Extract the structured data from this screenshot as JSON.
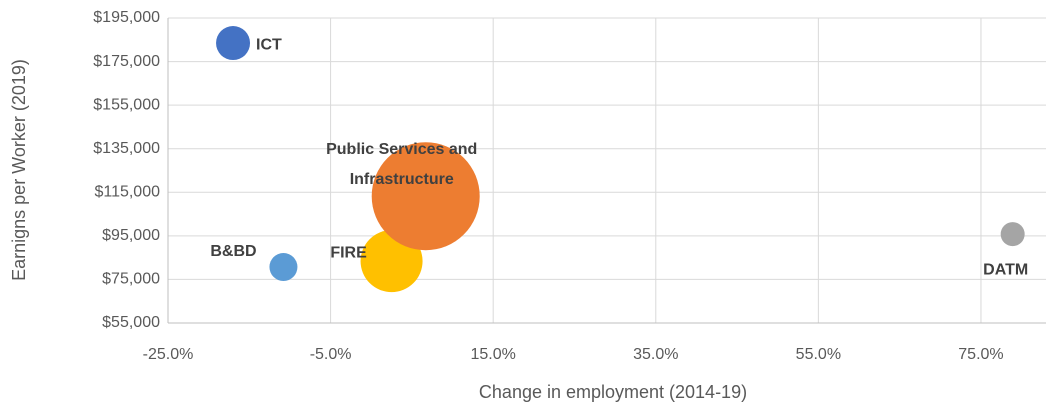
{
  "chart_data": {
    "type": "scatter",
    "x_label": "Change in employment (2014-19)",
    "y_label": "Earnigns per Worker (2019)",
    "xlim": [
      -25,
      83
    ],
    "ylim": [
      55000,
      195000
    ],
    "xticks": [
      {
        "value": -25,
        "label": "-25.0%"
      },
      {
        "value": -5,
        "label": "-5.0%"
      },
      {
        "value": 15,
        "label": "15.0%"
      },
      {
        "value": 35,
        "label": "35.0%"
      },
      {
        "value": 55,
        "label": "55.0%"
      },
      {
        "value": 75,
        "label": "75.0%"
      }
    ],
    "yticks": [
      {
        "value": 55000,
        "label": "$55,000"
      },
      {
        "value": 75000,
        "label": "$75,000"
      },
      {
        "value": 95000,
        "label": "$95,000"
      },
      {
        "value": 115000,
        "label": "$115,000"
      },
      {
        "value": 135000,
        "label": "$135,000"
      },
      {
        "value": 155000,
        "label": "$155,000"
      },
      {
        "value": 175000,
        "label": "$175,000"
      },
      {
        "value": 195000,
        "label": "$195,000"
      }
    ],
    "grid": true,
    "series": [
      {
        "name": "ICT",
        "color": "#4472c4",
        "x": [
          -17.0
        ],
        "values": [
          183500
        ],
        "sizes": [
          289
        ]
      },
      {
        "name": "B&BD",
        "color": "#5b9bd5",
        "x": [
          -10.8
        ],
        "values": [
          80700
        ],
        "sizes": [
          196
        ]
      },
      {
        "name": "FIRE",
        "color": "#ffc000",
        "x": [
          2.5
        ],
        "values": [
          83400
        ],
        "sizes": [
          961
        ]
      },
      {
        "name": "Public Services and Infrastructure",
        "color": "#ed7d31",
        "x": [
          6.7
        ],
        "values": [
          113200
        ],
        "sizes": [
          2916
        ]
      },
      {
        "name": "DATM",
        "color": "#a5a5a5",
        "x": [
          78.9
        ],
        "values": [
          95800
        ],
        "sizes": [
          144
        ]
      }
    ]
  }
}
